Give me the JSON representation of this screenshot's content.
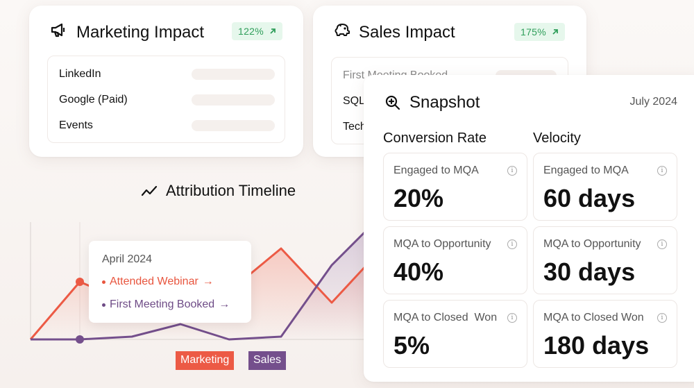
{
  "marketing_card": {
    "title": "Marketing Impact",
    "badge": "122%",
    "icon": "megaphone-icon",
    "sources": [
      "LinkedIn",
      "Google (Paid)",
      "Events"
    ]
  },
  "sales_card": {
    "title": "Sales Impact",
    "badge": "175%",
    "icon": "piggy-bank-icon",
    "sources": [
      "First Meeting Booked",
      "SQL",
      "Tech"
    ]
  },
  "timeline": {
    "title": "Attribution Timeline",
    "icon": "trend-icon",
    "tooltip": {
      "date": "April 2024",
      "events": [
        {
          "label": "Attended Webinar",
          "color": "#e8553e"
        },
        {
          "label": "First Meeting Booked",
          "color": "#6e4b86"
        }
      ]
    },
    "legend": [
      {
        "label": "Marketing",
        "color": "#ec5a45"
      },
      {
        "label": "Sales",
        "color": "#744f8c"
      }
    ]
  },
  "snapshot": {
    "title": "Snapshot",
    "icon": "zoom-in-icon",
    "date": "July 2024",
    "conversion": {
      "heading": "Conversion Rate",
      "metrics": [
        {
          "label": "Engaged to MQA",
          "value": "20%"
        },
        {
          "label": "MQA to Opportunity",
          "value": "40%"
        },
        {
          "label": "MQA to Closed  Won",
          "value": "5%"
        }
      ]
    },
    "velocity": {
      "heading": "Velocity",
      "metrics": [
        {
          "label": "Engaged to MQA",
          "value": "60 days"
        },
        {
          "label": "MQA to Opportunity",
          "value": "30 days"
        },
        {
          "label": "MQA to Closed Won",
          "value": "180 days"
        }
      ]
    },
    "info_icon": "info-icon"
  }
}
